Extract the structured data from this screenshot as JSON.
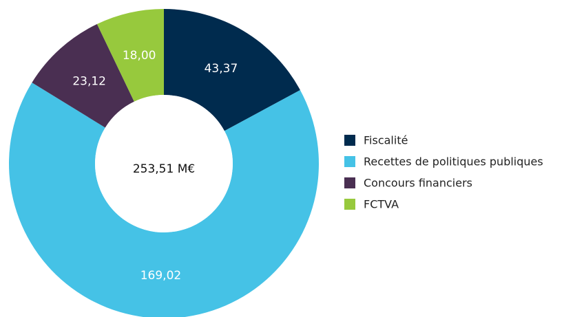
{
  "chart_data": {
    "type": "donut",
    "center_label": "253,51 M€",
    "categories": [
      "Fiscalité",
      "Recettes de politiques publiques",
      "Concours financiers",
      "FCTVA"
    ],
    "values": [
      43.37,
      169.02,
      23.12,
      18.0
    ],
    "value_labels": [
      "43,37",
      "169,02",
      "23,12",
      "18,00"
    ],
    "colors": [
      "#002b4e",
      "#45c2e6",
      "#4a2f52",
      "#97c93d"
    ],
    "legend": "right"
  }
}
